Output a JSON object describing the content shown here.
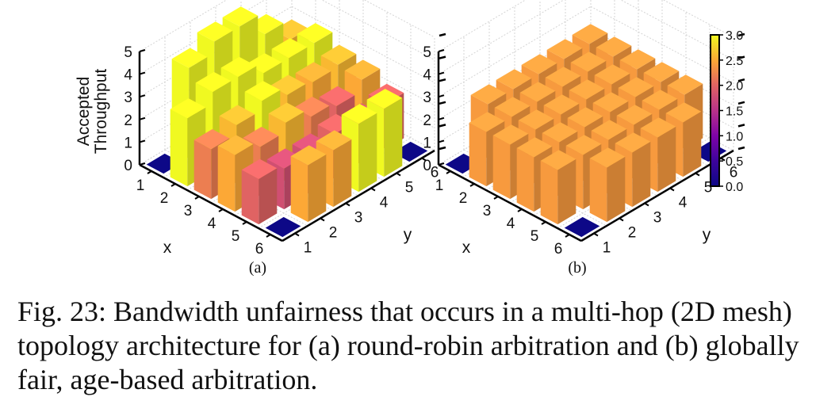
{
  "caption": "Fig. 23: Bandwidth unfairness that occurs in a multi-hop (2D mesh) topology architecture for (a) round-robin arbitration and (b) globally fair, age-based arbitration.",
  "colorbar": {
    "min": 0.0,
    "max": 3.0,
    "ticks": [
      "0.0",
      "0.5",
      "1.0",
      "1.5",
      "2.0",
      "2.5",
      "3.0"
    ]
  },
  "chart_data": [
    {
      "type": "bar3d",
      "subtitle": "(a)",
      "xlabel": "x",
      "ylabel": "y",
      "zlabel": "Accepted\nThroughput",
      "zlabel_lines": [
        "Accepted",
        "Throughput"
      ],
      "x_ticks": [
        "1",
        "2",
        "3",
        "4",
        "5",
        "6"
      ],
      "y_ticks": [
        "1",
        "2",
        "3",
        "4",
        "5",
        "6"
      ],
      "z_ticks": [
        "0",
        "1",
        "2",
        "3",
        "4",
        "5"
      ],
      "zlim": [
        0,
        5
      ],
      "values": [
        [
          0.0,
          4.0,
          4.5,
          4.5,
          3.5,
          2.6
        ],
        [
          3.0,
          3.5,
          3.5,
          3.0,
          3.0,
          3.0
        ],
        [
          2.2,
          2.6,
          3.0,
          2.6,
          2.5,
          2.6
        ],
        [
          2.5,
          2.2,
          2.6,
          2.2,
          2.0,
          2.5
        ],
        [
          2.0,
          1.8,
          1.8,
          2.0,
          1.8,
          2.0
        ],
        [
          0.0,
          2.5,
          2.5,
          3.0,
          3.0,
          0.0
        ]
      ]
    },
    {
      "type": "bar3d",
      "subtitle": "(b)",
      "xlabel": "x",
      "ylabel": "y",
      "zlabel": "",
      "x_ticks": [
        "1",
        "2",
        "3",
        "4",
        "5",
        "6"
      ],
      "y_ticks": [
        "1",
        "2",
        "3",
        "4",
        "5",
        "6"
      ],
      "z_ticks": [
        "0",
        "1",
        "2",
        "3",
        "4",
        "5"
      ],
      "zlim": [
        0,
        5
      ],
      "values": [
        [
          0.0,
          2.4,
          2.4,
          2.4,
          2.4,
          2.4
        ],
        [
          2.4,
          2.4,
          2.4,
          2.4,
          2.4,
          2.4
        ],
        [
          2.4,
          2.4,
          2.4,
          2.4,
          2.4,
          2.4
        ],
        [
          2.4,
          2.4,
          2.4,
          2.4,
          2.4,
          2.4
        ],
        [
          2.4,
          2.4,
          2.4,
          2.4,
          2.4,
          2.4
        ],
        [
          0.0,
          2.4,
          2.4,
          2.4,
          2.4,
          0.0
        ]
      ]
    }
  ]
}
